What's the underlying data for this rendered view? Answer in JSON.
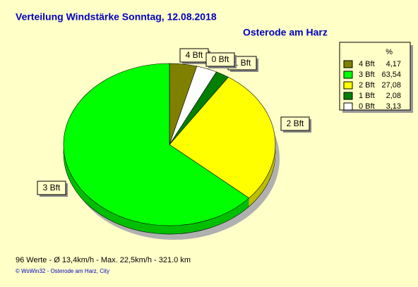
{
  "chart_data": {
    "type": "pie",
    "title": "Verteilung Windstärke  Sonntag, 12.08.2018",
    "subtitle": "Osterode am Harz",
    "legend_header": "%",
    "categories": [
      "4 Bft",
      "3 Bft",
      "2 Bft",
      "1 Bft",
      "0 Bft"
    ],
    "values": [
      4.17,
      63.54,
      27.08,
      2.08,
      3.13
    ],
    "value_labels": [
      "4,17",
      "63,54",
      "27,08",
      "2,08",
      "3,13"
    ],
    "colors": [
      "#808000",
      "#00ff00",
      "#ffff00",
      "#008000",
      "#ffffff"
    ],
    "legend_position": "upper right",
    "footer": "96 Werte   -   Ø 13,4km/h   -   Max. 22,5km/h   -   321.0 km",
    "credit": "© WsWin32  -  Osterode am Harz, City"
  }
}
